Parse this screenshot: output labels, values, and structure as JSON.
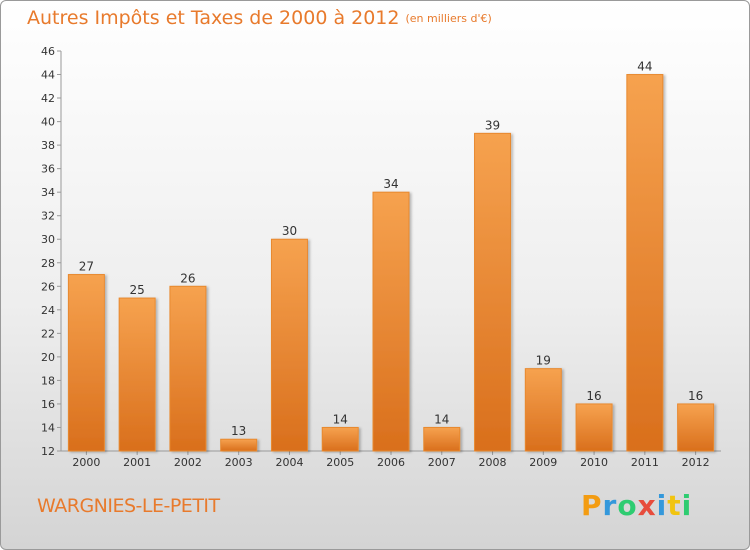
{
  "header": {
    "title": "Autres Impôts et Taxes de 2000 à 2012",
    "subtitle": "(en milliers d'€)"
  },
  "footer": {
    "commune": "WARGNIES-LE-PETIT",
    "logo_letters": [
      "P",
      "r",
      "o",
      "x",
      "i",
      "t",
      "i"
    ],
    "logo_colors": [
      "#f39c12",
      "#3498db",
      "#2ecc71",
      "#e74c3c",
      "#3498db",
      "#f1c40f",
      "#2ecc71"
    ]
  },
  "colors": {
    "accent": "#e87a2c",
    "bar_light": "#f6a24f",
    "bar_dark": "#d96f1c"
  },
  "chart_data": {
    "type": "bar",
    "categories": [
      "2000",
      "2001",
      "2002",
      "2003",
      "2004",
      "2005",
      "2006",
      "2007",
      "2008",
      "2009",
      "2010",
      "2011",
      "2012"
    ],
    "values": [
      27,
      25,
      26,
      13,
      30,
      14,
      34,
      14,
      39,
      19,
      16,
      44,
      16
    ],
    "title": "Autres Impôts et Taxes de 2000 à 2012",
    "subtitle": "(en milliers d'€)",
    "ylim": [
      12,
      46
    ],
    "yticks": [
      12,
      14,
      16,
      18,
      20,
      22,
      24,
      26,
      28,
      30,
      32,
      34,
      36,
      38,
      40,
      42,
      44,
      46
    ],
    "grid": false,
    "data_labels": true
  }
}
